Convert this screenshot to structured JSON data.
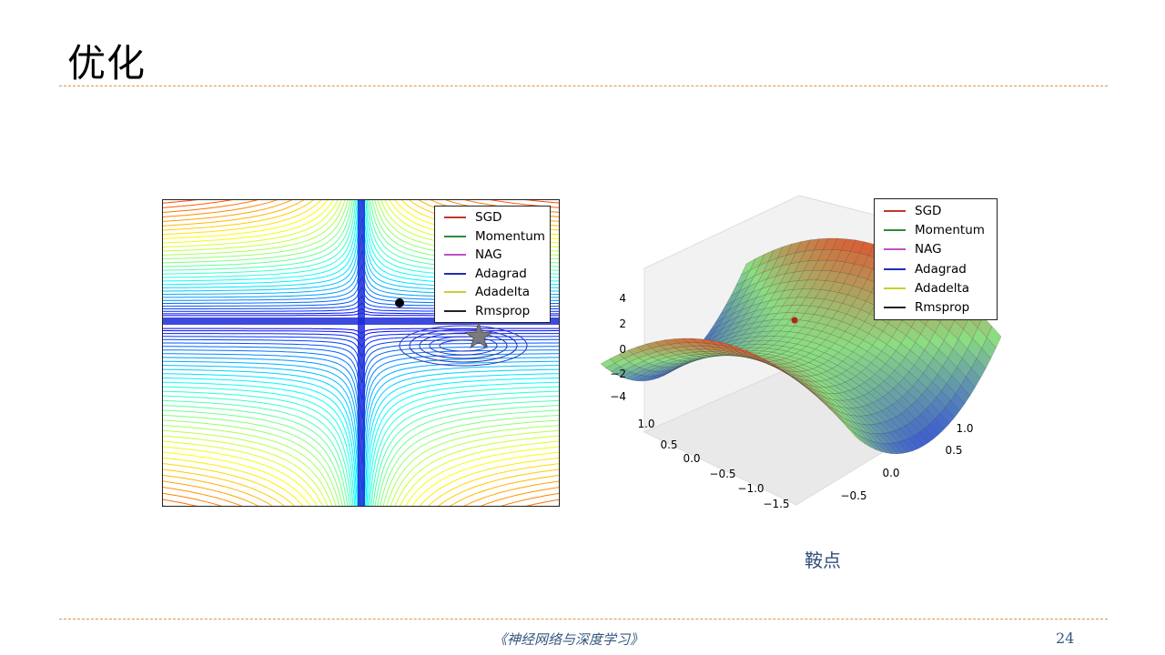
{
  "slide": {
    "title": "优化",
    "caption": "鞍点",
    "footer": "《神经网络与深度学习》",
    "page_number": "24"
  },
  "left_figure": {
    "legend": [
      {
        "label": "SGD",
        "color": "#c0392b"
      },
      {
        "label": "Momentum",
        "color": "#2e8b3a"
      },
      {
        "label": "NAG",
        "color": "#c050c8"
      },
      {
        "label": "Adagrad",
        "color": "#1f2fb0"
      },
      {
        "label": "Adadelta",
        "color": "#c8d030"
      },
      {
        "label": "Rmsprop",
        "color": "#222222"
      }
    ]
  },
  "right_figure": {
    "legend": [
      {
        "label": "SGD",
        "color": "#c0392b"
      },
      {
        "label": "Momentum",
        "color": "#2e8b3a"
      },
      {
        "label": "NAG",
        "color": "#c050c8"
      },
      {
        "label": "Adagrad",
        "color": "#1f2fb0"
      },
      {
        "label": "Adadelta",
        "color": "#c8d030"
      },
      {
        "label": "Rmsprop",
        "color": "#222222"
      }
    ],
    "z_ticks": [
      "4",
      "2",
      "0",
      "−2",
      "−4"
    ],
    "x_ticks": [
      "1.0",
      "0.5",
      "0.0",
      "−0.5",
      "−1.0",
      "−1.5"
    ],
    "y_ticks": [
      "1.0",
      "0.5",
      "0.0",
      "−0.5"
    ]
  }
}
